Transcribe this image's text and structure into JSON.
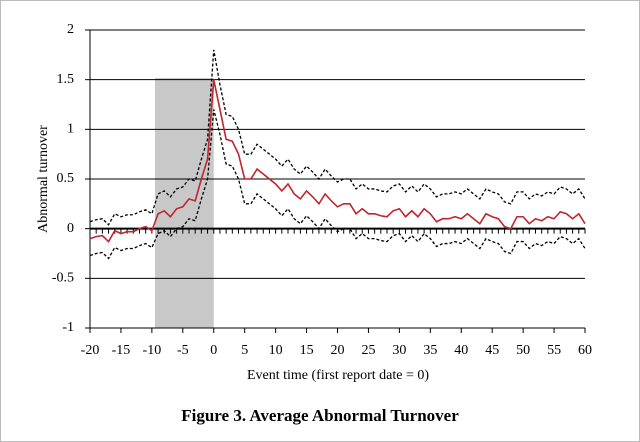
{
  "chart_data": {
    "type": "line",
    "caption": "Figure 3. Average Abnormal Turnover",
    "x_label": "Event time (first report date = 0)",
    "y_label": "Abnormal turnover",
    "x": [
      -20,
      -19,
      -18,
      -17,
      -16,
      -15,
      -14,
      -13,
      -12,
      -11,
      -10,
      -9,
      -8,
      -7,
      -6,
      -5,
      -4,
      -3,
      -2,
      -1,
      0,
      1,
      2,
      3,
      4,
      5,
      6,
      7,
      8,
      9,
      10,
      11,
      12,
      13,
      14,
      15,
      16,
      17,
      18,
      19,
      20,
      21,
      22,
      23,
      24,
      25,
      26,
      27,
      28,
      29,
      30,
      31,
      32,
      33,
      34,
      35,
      36,
      37,
      38,
      39,
      40,
      41,
      42,
      43,
      44,
      45,
      46,
      47,
      48,
      49,
      50,
      51,
      52,
      53,
      54,
      55,
      56,
      57,
      58,
      59,
      60
    ],
    "series": [
      {
        "color": "#c0262d",
        "style": "solid",
        "values": [
          -0.1,
          -0.08,
          -0.07,
          -0.13,
          -0.02,
          -0.05,
          -0.03,
          -0.03,
          0.0,
          0.02,
          -0.02,
          0.15,
          0.18,
          0.12,
          0.2,
          0.22,
          0.3,
          0.28,
          0.5,
          0.7,
          1.5,
          1.2,
          0.9,
          0.88,
          0.75,
          0.5,
          0.5,
          0.6,
          0.55,
          0.5,
          0.45,
          0.38,
          0.45,
          0.35,
          0.3,
          0.38,
          0.32,
          0.25,
          0.35,
          0.28,
          0.22,
          0.25,
          0.25,
          0.15,
          0.2,
          0.15,
          0.15,
          0.13,
          0.12,
          0.18,
          0.2,
          0.12,
          0.18,
          0.12,
          0.2,
          0.15,
          0.07,
          0.1,
          0.1,
          0.12,
          0.1,
          0.15,
          0.1,
          0.05,
          0.15,
          0.12,
          0.1,
          0.02,
          0.0,
          0.12,
          0.12,
          0.05,
          0.1,
          0.08,
          0.12,
          0.1,
          0.17,
          0.15,
          0.1,
          0.15,
          0.05
        ]
      },
      {
        "color": "#000000",
        "style": "dashed",
        "values": [
          0.07,
          0.09,
          0.1,
          0.04,
          0.15,
          0.12,
          0.14,
          0.14,
          0.17,
          0.19,
          0.15,
          0.35,
          0.38,
          0.32,
          0.4,
          0.42,
          0.5,
          0.48,
          0.7,
          0.9,
          1.8,
          1.45,
          1.15,
          1.13,
          1.0,
          0.75,
          0.75,
          0.85,
          0.8,
          0.75,
          0.7,
          0.63,
          0.7,
          0.6,
          0.55,
          0.63,
          0.57,
          0.5,
          0.6,
          0.53,
          0.47,
          0.5,
          0.5,
          0.4,
          0.45,
          0.4,
          0.4,
          0.38,
          0.37,
          0.43,
          0.45,
          0.37,
          0.43,
          0.37,
          0.45,
          0.4,
          0.32,
          0.35,
          0.35,
          0.37,
          0.35,
          0.4,
          0.35,
          0.3,
          0.4,
          0.37,
          0.35,
          0.27,
          0.25,
          0.37,
          0.37,
          0.3,
          0.35,
          0.33,
          0.37,
          0.35,
          0.42,
          0.4,
          0.35,
          0.4,
          0.3
        ]
      },
      {
        "color": "#000000",
        "style": "dashed",
        "values": [
          -0.27,
          -0.25,
          -0.24,
          -0.3,
          -0.19,
          -0.22,
          -0.2,
          -0.2,
          -0.17,
          -0.15,
          -0.19,
          -0.05,
          -0.02,
          -0.08,
          0.0,
          0.02,
          0.1,
          0.08,
          0.3,
          0.5,
          1.2,
          0.95,
          0.65,
          0.63,
          0.5,
          0.25,
          0.25,
          0.35,
          0.3,
          0.25,
          0.2,
          0.13,
          0.2,
          0.1,
          0.05,
          0.13,
          0.07,
          0.0,
          0.1,
          0.03,
          -0.03,
          0.0,
          0.0,
          -0.1,
          -0.05,
          -0.1,
          -0.1,
          -0.12,
          -0.13,
          -0.07,
          -0.05,
          -0.13,
          -0.07,
          -0.13,
          -0.05,
          -0.1,
          -0.18,
          -0.15,
          -0.15,
          -0.13,
          -0.15,
          -0.1,
          -0.15,
          -0.2,
          -0.1,
          -0.13,
          -0.15,
          -0.23,
          -0.25,
          -0.13,
          -0.13,
          -0.2,
          -0.15,
          -0.17,
          -0.13,
          -0.15,
          -0.08,
          -0.1,
          -0.15,
          -0.1,
          -0.2
        ]
      }
    ],
    "shaded_x": [
      -9.5,
      0
    ],
    "shade_color": "#c8c8c8",
    "xlim": [
      -20,
      60
    ],
    "xticks": [
      -20,
      -15,
      -10,
      -5,
      0,
      5,
      10,
      15,
      20,
      25,
      30,
      35,
      40,
      45,
      50,
      55,
      60
    ],
    "ylim": [
      -1,
      2
    ],
    "yticks": [
      -1,
      -0.5,
      0,
      0.5,
      1,
      1.5,
      2
    ],
    "grid": true
  }
}
